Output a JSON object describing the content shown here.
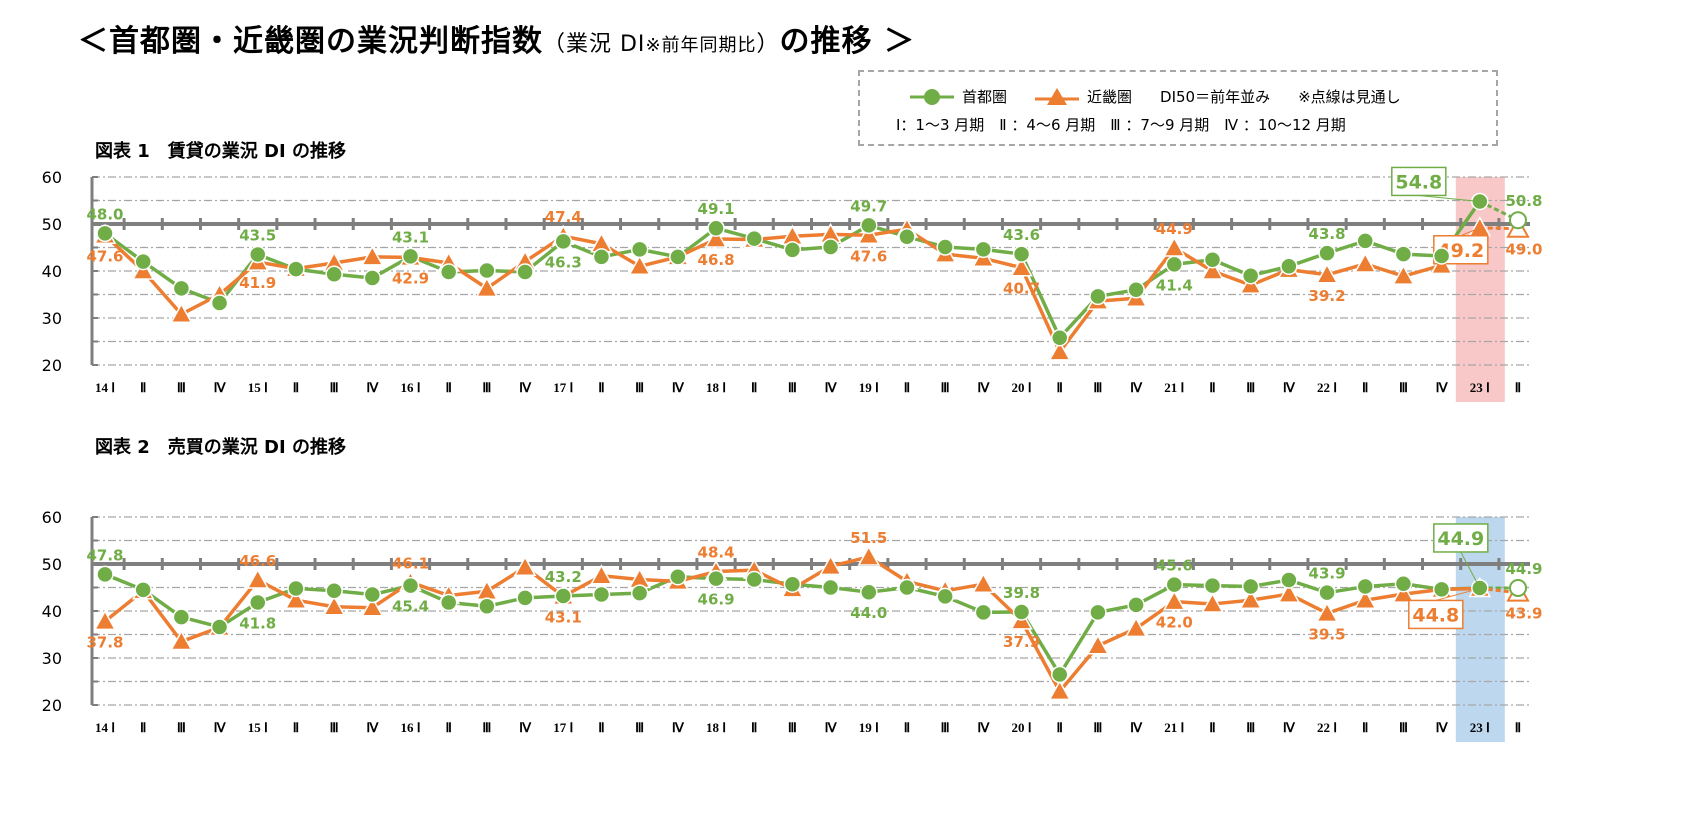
{
  "title": {
    "main": "＜首都圏・近畿圏の業況判断指数",
    "paren_open": "（業況 DI",
    "note": "※前年同期比",
    "paren_close": "）",
    "tail": "の推移 ＞"
  },
  "legend": {
    "series1": "首都圏",
    "series2": "近畿圏",
    "di_note": "DI50＝前年並み",
    "dotted_note": "※点線は見通し",
    "quarters": "Ⅰ：1～3 月期　Ⅱ ：4～6 月期　Ⅲ ：7～9 月期　Ⅳ ：10～12 月期"
  },
  "colors": {
    "series1": "#70ad47",
    "series2": "#ed7d31",
    "highlight1": "#f8c8c8",
    "highlight2": "#bdd7ee",
    "grid": "#a6a6a6",
    "axis": "#7f7f7f"
  },
  "chart_data": [
    {
      "type": "line",
      "title": "図表 1　賃貸の業況 DI の推移",
      "ylim": [
        20,
        60
      ],
      "yticks": [
        "60",
        "50",
        "40",
        "30",
        "20"
      ],
      "reference_line": 50,
      "grid": true,
      "categories": [
        "14 Ⅰ",
        "Ⅱ",
        "Ⅲ",
        "Ⅳ",
        "15 Ⅰ",
        "Ⅱ",
        "Ⅲ",
        "Ⅳ",
        "16 Ⅰ",
        "Ⅱ",
        "Ⅲ",
        "Ⅳ",
        "17 Ⅰ",
        "Ⅱ",
        "Ⅲ",
        "Ⅳ",
        "18 Ⅰ",
        "Ⅱ",
        "Ⅲ",
        "Ⅳ",
        "19 Ⅰ",
        "Ⅱ",
        "Ⅲ",
        "Ⅳ",
        "20 Ⅰ",
        "Ⅱ",
        "Ⅲ",
        "Ⅳ",
        "21 Ⅰ",
        "Ⅱ",
        "Ⅲ",
        "Ⅳ",
        "22 Ⅰ",
        "Ⅱ",
        "Ⅲ",
        "Ⅳ",
        "23 Ⅰ",
        "Ⅱ"
      ],
      "series": [
        {
          "name": "首都圏",
          "values": [
            48.0,
            42.0,
            36.3,
            33.2,
            43.5,
            40.4,
            39.3,
            38.5,
            43.1,
            39.8,
            40.1,
            39.8,
            46.3,
            43.0,
            44.6,
            43.0,
            49.1,
            46.9,
            44.5,
            45.1,
            49.7,
            47.3,
            45.1,
            44.6,
            43.6,
            25.8,
            34.6,
            36.0,
            41.4,
            42.4,
            39.0,
            41.0,
            43.8,
            46.4,
            43.6,
            43.2,
            54.8,
            50.8
          ],
          "labels": [
            {
              "i": 0,
              "text": "48.0"
            },
            {
              "i": 4,
              "text": "43.5"
            },
            {
              "i": 8,
              "text": "43.1"
            },
            {
              "i": 12,
              "text": "46.3"
            },
            {
              "i": 16,
              "text": "49.1"
            },
            {
              "i": 20,
              "text": "49.7"
            },
            {
              "i": 24,
              "text": "43.6"
            },
            {
              "i": 28,
              "text": "41.4"
            },
            {
              "i": 32,
              "text": "43.8"
            },
            {
              "i": 37,
              "text": "50.8"
            }
          ],
          "callout": {
            "i": 36,
            "text": "54.8"
          }
        },
        {
          "name": "近畿圏",
          "values": [
            47.6,
            40.0,
            30.8,
            35.0,
            41.9,
            40.5,
            41.7,
            43.0,
            42.9,
            41.7,
            36.3,
            42.0,
            47.4,
            45.8,
            41.0,
            43.0,
            46.8,
            46.7,
            47.4,
            47.8,
            47.6,
            48.9,
            43.6,
            42.7,
            40.7,
            22.8,
            33.6,
            34.2,
            44.9,
            40.0,
            37.0,
            40.3,
            39.2,
            41.5,
            38.9,
            41.2,
            49.2,
            49.0
          ],
          "labels": [
            {
              "i": 0,
              "text": "47.6"
            },
            {
              "i": 4,
              "text": "41.9"
            },
            {
              "i": 8,
              "text": "42.9"
            },
            {
              "i": 12,
              "text": "47.4"
            },
            {
              "i": 16,
              "text": "46.8"
            },
            {
              "i": 20,
              "text": "47.6"
            },
            {
              "i": 24,
              "text": "40.7"
            },
            {
              "i": 28,
              "text": "44.9"
            },
            {
              "i": 32,
              "text": "39.2"
            },
            {
              "i": 37,
              "text": "49.0"
            }
          ],
          "callout": {
            "i": 36,
            "text": "49.2"
          }
        }
      ],
      "forecast_from_index": 36,
      "highlight_category": "23 Ⅰ"
    },
    {
      "type": "line",
      "title": "図表 2　売買の業況 DI の推移",
      "ylim": [
        20,
        60
      ],
      "yticks": [
        "60",
        "50",
        "40",
        "30",
        "20"
      ],
      "reference_line": 50,
      "grid": true,
      "categories": [
        "14 Ⅰ",
        "Ⅱ",
        "Ⅲ",
        "Ⅳ",
        "15 Ⅰ",
        "Ⅱ",
        "Ⅲ",
        "Ⅳ",
        "16 Ⅰ",
        "Ⅱ",
        "Ⅲ",
        "Ⅳ",
        "17 Ⅰ",
        "Ⅱ",
        "Ⅲ",
        "Ⅳ",
        "18 Ⅰ",
        "Ⅱ",
        "Ⅲ",
        "Ⅳ",
        "19 Ⅰ",
        "Ⅱ",
        "Ⅲ",
        "Ⅳ",
        "20 Ⅰ",
        "Ⅱ",
        "Ⅲ",
        "Ⅳ",
        "21 Ⅰ",
        "Ⅱ",
        "Ⅲ",
        "Ⅳ",
        "22 Ⅰ",
        "Ⅱ",
        "Ⅲ",
        "Ⅳ",
        "23 Ⅰ",
        "Ⅱ"
      ],
      "series": [
        {
          "name": "首都圏",
          "values": [
            47.8,
            44.5,
            38.7,
            36.6,
            41.8,
            44.8,
            44.3,
            43.5,
            45.4,
            41.8,
            41.0,
            42.8,
            43.2,
            43.5,
            43.8,
            47.3,
            46.9,
            46.7,
            45.7,
            45.0,
            44.0,
            45.0,
            43.1,
            39.7,
            39.8,
            26.5,
            39.7,
            41.3,
            45.6,
            45.4,
            45.2,
            46.6,
            43.9,
            45.2,
            45.8,
            44.6,
            44.9,
            44.9
          ],
          "labels": [
            {
              "i": 0,
              "text": "47.8"
            },
            {
              "i": 4,
              "text": "41.8"
            },
            {
              "i": 8,
              "text": "45.4"
            },
            {
              "i": 12,
              "text": "43.2"
            },
            {
              "i": 16,
              "text": "46.9"
            },
            {
              "i": 20,
              "text": "44.0"
            },
            {
              "i": 24,
              "text": "39.8"
            },
            {
              "i": 28,
              "text": "45.6"
            },
            {
              "i": 32,
              "text": "43.9"
            },
            {
              "i": 37,
              "text": "44.9"
            }
          ],
          "callout": {
            "i": 36,
            "text": "44.9"
          }
        },
        {
          "name": "近畿圏",
          "values": [
            37.8,
            44.3,
            33.5,
            36.5,
            46.6,
            42.3,
            40.9,
            40.7,
            46.1,
            43.3,
            44.2,
            49.3,
            43.1,
            47.5,
            46.7,
            46.3,
            48.4,
            48.7,
            44.7,
            49.5,
            51.5,
            46.3,
            44.3,
            45.7,
            37.9,
            22.9,
            32.6,
            36.3,
            42.0,
            41.5,
            42.3,
            43.6,
            39.5,
            42.3,
            43.6,
            44.6,
            44.8,
            43.9
          ],
          "labels": [
            {
              "i": 0,
              "text": "37.8"
            },
            {
              "i": 4,
              "text": "46.6"
            },
            {
              "i": 8,
              "text": "46.1"
            },
            {
              "i": 12,
              "text": "43.1"
            },
            {
              "i": 16,
              "text": "48.4"
            },
            {
              "i": 20,
              "text": "51.5"
            },
            {
              "i": 24,
              "text": "37.9"
            },
            {
              "i": 28,
              "text": "42.0"
            },
            {
              "i": 32,
              "text": "39.5"
            },
            {
              "i": 37,
              "text": "43.9"
            }
          ],
          "callout": {
            "i": 36,
            "text": "44.8"
          }
        }
      ],
      "forecast_from_index": 36,
      "highlight_category": "23 Ⅰ"
    }
  ]
}
